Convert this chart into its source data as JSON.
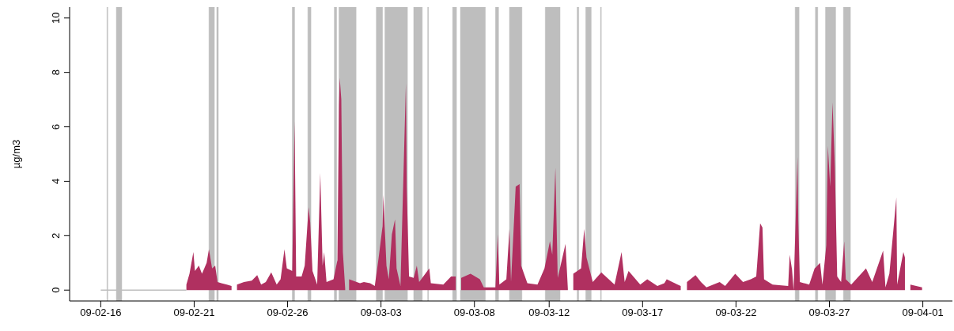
{
  "chart_data": {
    "type": "area",
    "ylabel": "µg/m3",
    "xlim": [
      "--02-14T08:00",
      "--04-02T14:00"
    ],
    "xticks": [
      {
        "value": "--02-16",
        "label": "09-02-16"
      },
      {
        "value": "--02-21",
        "label": "09-02-21"
      },
      {
        "value": "--02-26",
        "label": "09-02-26"
      },
      {
        "value": "--03-03",
        "label": "09-03-03"
      },
      {
        "value": "--03-08",
        "label": "09-03-08"
      },
      {
        "value": "--03-12",
        "label": "09-03-12"
      },
      {
        "value": "--03-17",
        "label": "09-03-17"
      },
      {
        "value": "--03-22",
        "label": "09-03-22"
      },
      {
        "value": "--03-27",
        "label": "09-03-27"
      },
      {
        "value": "--04-01",
        "label": "09-04-01"
      }
    ],
    "ylim": [
      -0.4,
      10.4
    ],
    "yticks": [
      0,
      2,
      4,
      6,
      8,
      10
    ],
    "bands": [
      {
        "axis": "x",
        "from": "--02-16T08:00",
        "to": "--02-16T09:00",
        "color": "#bebebe"
      },
      {
        "axis": "x",
        "from": "--02-16T20:00",
        "to": "--02-17T03:00",
        "color": "#bebebe"
      },
      {
        "axis": "x",
        "from": "--02-21T19:00",
        "to": "--02-22T02:00",
        "color": "#bebebe"
      },
      {
        "axis": "x",
        "from": "--02-22T05:00",
        "to": "--02-22T07:00",
        "color": "#bebebe"
      },
      {
        "axis": "x",
        "from": "--02-26T06:00",
        "to": "--02-26T09:00",
        "color": "#bebebe"
      },
      {
        "axis": "x",
        "from": "--02-27T02:00",
        "to": "--02-27T06:00",
        "color": "#bebebe"
      },
      {
        "axis": "x",
        "from": "--02-28T12:00",
        "to": "--02-28T15:00",
        "color": "#bebebe"
      },
      {
        "axis": "x",
        "from": "--02-28T18:00",
        "to": "--03-01T16:00",
        "color": "#bebebe"
      },
      {
        "axis": "x",
        "from": "--03-02T18:00",
        "to": "--03-03T02:00",
        "color": "#bebebe"
      },
      {
        "axis": "x",
        "from": "--03-03T05:00",
        "to": "--03-04T10:00",
        "color": "#bebebe"
      },
      {
        "axis": "x",
        "from": "--03-04T18:00",
        "to": "--03-05T05:00",
        "color": "#bebebe"
      },
      {
        "axis": "x",
        "from": "--03-05T12:00",
        "to": "--03-05T13:00",
        "color": "#bebebe"
      },
      {
        "axis": "x",
        "from": "--03-06T20:00",
        "to": "--03-07T01:00",
        "color": "#bebebe"
      },
      {
        "axis": "x",
        "from": "--03-07T06:00",
        "to": "--03-08T14:00",
        "color": "#bebebe"
      },
      {
        "axis": "x",
        "from": "--03-09T03:00",
        "to": "--03-09T07:00",
        "color": "#bebebe"
      },
      {
        "axis": "x",
        "from": "--03-09T21:00",
        "to": "--03-10T13:00",
        "color": "#bebebe"
      },
      {
        "axis": "x",
        "from": "--03-11T19:00",
        "to": "--03-12T14:00",
        "color": "#bebebe"
      },
      {
        "axis": "x",
        "from": "--03-13T12:00",
        "to": "--03-13T14:00",
        "color": "#bebebe"
      },
      {
        "axis": "x",
        "from": "--03-13T23:00",
        "to": "--03-14T06:00",
        "color": "#bebebe"
      },
      {
        "axis": "x",
        "from": "--03-14T18:00",
        "to": "--03-14T19:00",
        "color": "#bebebe"
      },
      {
        "axis": "x",
        "from": "--03-25T04:00",
        "to": "--03-25T09:00",
        "color": "#bebebe"
      },
      {
        "axis": "x",
        "from": "--03-26T06:00",
        "to": "--03-26T09:00",
        "color": "#bebebe"
      },
      {
        "axis": "x",
        "from": "--03-26T19:00",
        "to": "--03-27T08:00",
        "color": "#bebebe"
      },
      {
        "axis": "x",
        "from": "--03-27T18:00",
        "to": "--03-28T03:00",
        "color": "#bebebe"
      }
    ],
    "series": [
      {
        "type": "line",
        "color": "#bebebe",
        "x": [
          "--02-16T00:00",
          "--02-20T14:00"
        ],
        "values": [
          0,
          0
        ]
      },
      {
        "color": "#b03060",
        "x": [
          "--02-20T14:00",
          "--02-20T18:00",
          "--02-20T23:00",
          "--02-21T01:00",
          "--02-21T06:00",
          "--02-21T10:00",
          "--02-21T13:00",
          "--02-21T16:00",
          "--02-21T19:00",
          "--02-21T23:00",
          "--02-22T03:00",
          "--02-22T06:00",
          "--02-22T11:00",
          "--02-22T18:00",
          "--02-23T00:00",
          "--02-23T02:00",
          "--02-23T07:00",
          "--02-23T16:00",
          "--02-24T02:00",
          "--02-24T09:00",
          "--02-24T14:00",
          "--02-24T20:00",
          "--02-25T03:00",
          "--02-25T10:00",
          "--02-25T15:00",
          "--02-25T20:00",
          "--02-25T23:00",
          "--02-26T06:00",
          "--02-26T09:00",
          "--02-26T11:00",
          "--02-26T18:00",
          "--02-26T22:00",
          "--02-27T03:00",
          "--02-27T05:00",
          "--02-27T08:00",
          "--02-27T14:00",
          "--02-27T18:00",
          "--02-27T21:00",
          "--02-27T23:00",
          "--02-28T02:00",
          "--02-28T11:00",
          "--02-28T16:00",
          "--02-28T18:00",
          "--02-28T19:00",
          "--02-28T21:00",
          "--02-28T23:00",
          "--03-01T02:00",
          "--03-01T05:00",
          "--03-01T07:00",
          "--03-01T21:00",
          "--03-02T02:00",
          "--03-02T10:00",
          "--03-02T16:00",
          "--03-02T21:00",
          "--03-03T02:00",
          "--03-03T03:00",
          "--03-03T07:00",
          "--03-03T10:00",
          "--03-03T14:00",
          "--03-03T18:00",
          "--03-03T20:00",
          "--03-04T01:00",
          "--03-04T08:00",
          "--03-04T09:00",
          "--03-04T12:00",
          "--03-04T18:00",
          "--03-04T22:00",
          "--03-05T01:00",
          "--03-05T14:00",
          "--03-05T16:00",
          "--03-06T08:00",
          "--03-06T18:00",
          "--03-07T00:00",
          "--03-07T04:00",
          "--03-07T07:00",
          "--03-07T19:00",
          "--03-08T07:00",
          "--03-08T12:00",
          "--03-09T03:00",
          "--03-09T06:00",
          "--03-09T08:00",
          "--03-09T17:00",
          "--03-09T21:00",
          "--03-09T23:00",
          "--03-10T05:00",
          "--03-10T10:00",
          "--03-10T12:00",
          "--03-10T20:00",
          "--03-11T09:00",
          "--03-11T18:00",
          "--03-12T01:00",
          "--03-12T04:00",
          "--03-12T08:00",
          "--03-12T11:00",
          "--03-12T21:00",
          "--03-13T00:00",
          "--03-13T04:00",
          "--03-13T07:00",
          "--03-13T17:00",
          "--03-13T21:00",
          "--03-14T00:00",
          "--03-14T08:00",
          "--03-14T19:00",
          "--03-15T12:00",
          "--03-15T21:00",
          "--03-16T01:00",
          "--03-16T06:00",
          "--03-16T21:00",
          "--03-17T06:00",
          "--03-17T19:00",
          "--03-18T04:00",
          "--03-18T07:00",
          "--03-18T21:00",
          "--03-19T01:00",
          "--03-19T05:00",
          "--03-19T09:00",
          "--03-19T20:00",
          "--03-20T03:00",
          "--03-20T10:00",
          "--03-21T03:00",
          "--03-21T10:00",
          "--03-21T23:00",
          "--03-22T09:00",
          "--03-22T19:00",
          "--03-23T02:00",
          "--03-23T07:00",
          "--03-23T10:00",
          "--03-23T12:00",
          "--03-23T23:00",
          "--03-24T19:00",
          "--03-24T21:00",
          "--03-25T00:00",
          "--03-25T02:00",
          "--03-25T07:00",
          "--03-25T08:00",
          "--03-25T10:00",
          "--03-25T22:00",
          "--03-26T05:00",
          "--03-26T07:00",
          "--03-26T12:00",
          "--03-26T15:00",
          "--03-26T20:00",
          "--03-26T22:00",
          "--03-27T01:00",
          "--03-27T04:00",
          "--03-27T07:00",
          "--03-27T10:00",
          "--03-27T15:00",
          "--03-27T19:00",
          "--03-27T21:00",
          "--03-28T04:00",
          "--03-28T23:00",
          "--03-29T07:00",
          "--03-29T21:00",
          "--03-30T00:00",
          "--03-30T05:00",
          "--03-30T14:00",
          "--03-30T15:00",
          "--03-30T23:00",
          "--03-31T01:00",
          "--03-31T05:00",
          "--03-31T08:00",
          "--03-31T23:00"
        ],
        "values": [
          0.2,
          0.6,
          1.4,
          0.7,
          0.9,
          0.6,
          0.8,
          1.0,
          1.5,
          0.8,
          0.9,
          0.3,
          0.25,
          0.2,
          0.15,
          null,
          0.2,
          0.3,
          0.35,
          0.55,
          0.2,
          0.3,
          0.65,
          0.2,
          0.4,
          1.5,
          0.8,
          0.7,
          6.2,
          0.5,
          0.5,
          0.9,
          3.05,
          2.5,
          0.7,
          0.2,
          4.3,
          0.9,
          1.4,
          0.3,
          0.4,
          1.1,
          6.8,
          7.8,
          7.0,
          1.4,
          0.05,
          null,
          0.4,
          0.25,
          0.3,
          0.25,
          0.15,
          1.2,
          2.35,
          3.5,
          0.9,
          0.4,
          2.05,
          2.6,
          0.8,
          0.15,
          7.6,
          3.8,
          0.5,
          0.45,
          0.9,
          0.3,
          0.8,
          0.25,
          0.2,
          0.5,
          0.5,
          null,
          0.45,
          0.6,
          0.4,
          0.1,
          0.1,
          2.05,
          0.2,
          0.4,
          2.25,
          0.3,
          3.8,
          3.9,
          0.9,
          0.25,
          0.2,
          0.8,
          1.8,
          1.3,
          4.5,
          0.45,
          1.7,
          0.05,
          null,
          0.6,
          0.8,
          2.25,
          1.2,
          0.3,
          0.65,
          0.2,
          1.4,
          0.3,
          0.7,
          0.2,
          0.4,
          0.15,
          0.25,
          0.4,
          0.2,
          0.15,
          null,
          0.3,
          0.55,
          0.3,
          0.1,
          0.3,
          0.15,
          0.6,
          0.3,
          0.4,
          0.5,
          2.45,
          2.3,
          0.4,
          0.2,
          0.15,
          1.3,
          0.75,
          0,
          4.9,
          2.55,
          0.3,
          0.2,
          0.8,
          0.85,
          1.0,
          0.2,
          1.65,
          5.3,
          3.8,
          6.9,
          4.5,
          0.5,
          0.3,
          1.8,
          0.4,
          0.2,
          0.8,
          0.3,
          1.45,
          0.1,
          0.6,
          3.4,
          0.2,
          1.4,
          1.2,
          null,
          0.2,
          0.1
        ]
      }
    ]
  }
}
